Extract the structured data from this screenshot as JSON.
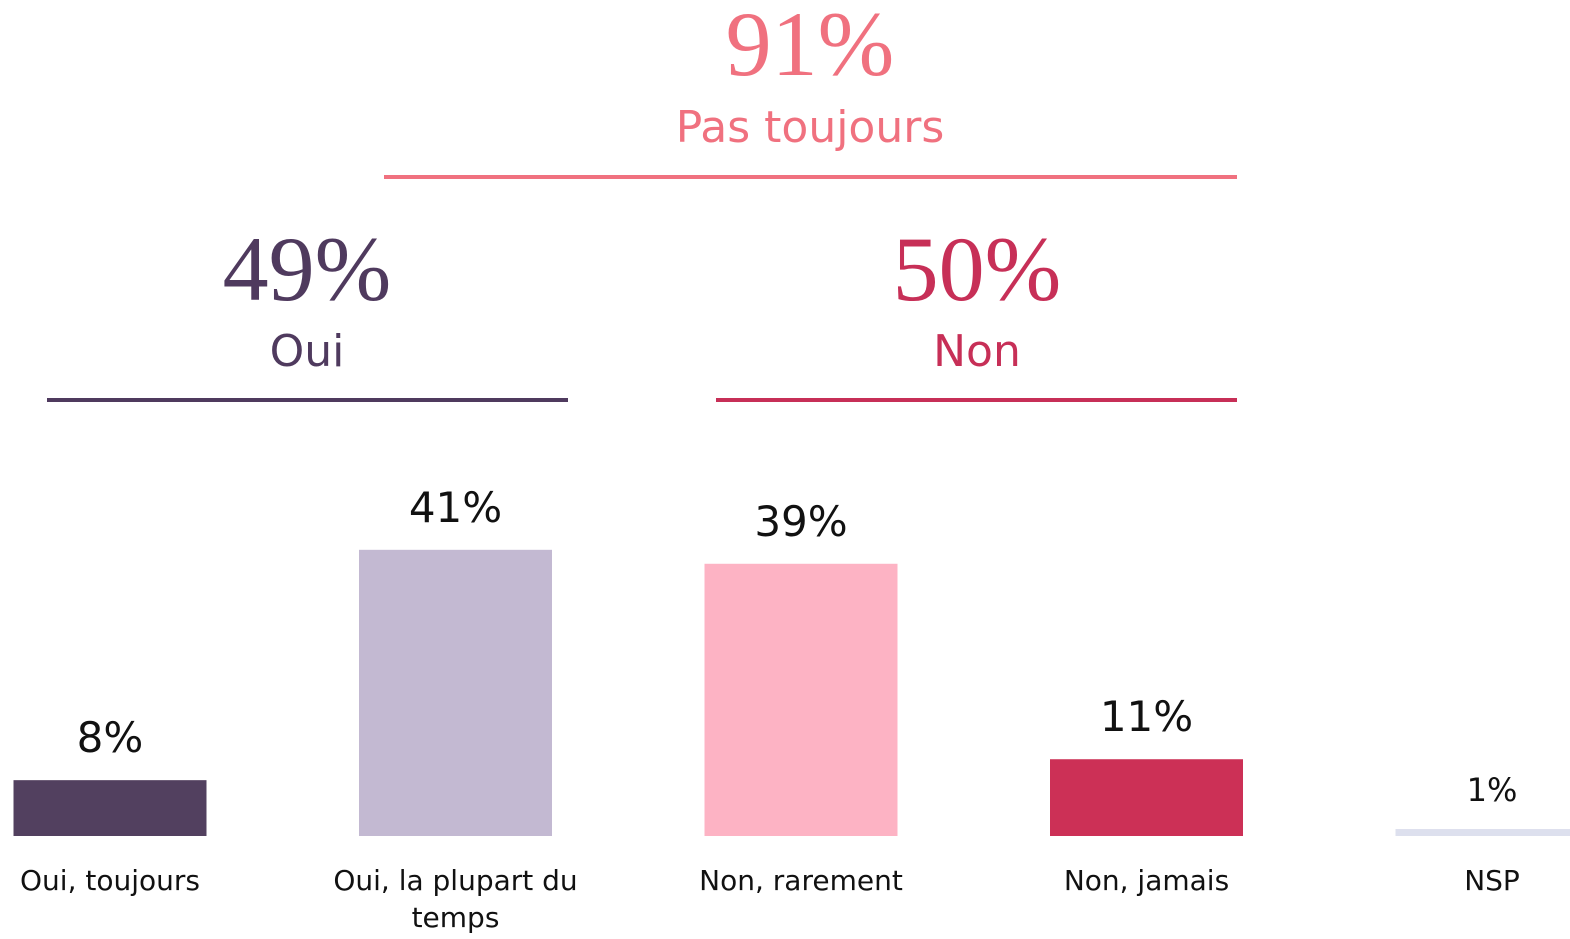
{
  "chart_data": {
    "type": "bar",
    "categories": [
      "Oui, toujours",
      "Oui, la plupart du temps",
      "Non, rarement",
      "Non, jamais",
      "NSP"
    ],
    "values": [
      8,
      41,
      39,
      11,
      1
    ],
    "value_labels": [
      "8%",
      "41%",
      "39%",
      "11%",
      "1%"
    ],
    "colors": [
      "#52405f",
      "#c3b9d2",
      "#fdb3c4",
      "#cc3056",
      "#dde0ee"
    ],
    "groups": [
      {
        "name": "Pas toujours",
        "value": 91,
        "value_label": "91%",
        "color": "#f0717f"
      },
      {
        "name": "Oui",
        "value": 49,
        "value_label": "49%",
        "color": "#4f3a5e"
      },
      {
        "name": "Non",
        "value": 50,
        "value_label": "50%",
        "color": "#c72f57"
      }
    ]
  }
}
